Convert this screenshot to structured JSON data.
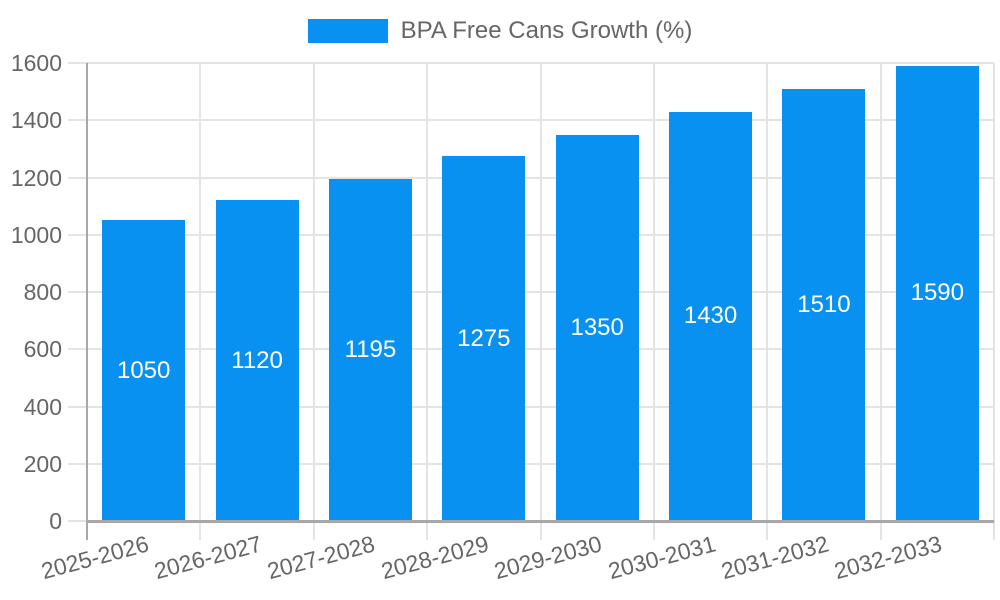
{
  "chart_data": {
    "type": "bar",
    "legend_label": "BPA Free Cans Growth (%)",
    "legend_position": "top",
    "categories": [
      "2025-2026",
      "2026-2027",
      "2027-2028",
      "2028-2029",
      "2029-2030",
      "2030-2031",
      "2031-2032",
      "2032-2033"
    ],
    "values": [
      1050,
      1120,
      1195,
      1275,
      1350,
      1430,
      1510,
      1590
    ],
    "yticks": [
      0,
      200,
      400,
      600,
      800,
      1000,
      1200,
      1400,
      1600
    ],
    "ylim": [
      0,
      1600
    ],
    "grid": true,
    "x_tick_rotation_deg": -15,
    "value_labels": "inside-center",
    "colors": {
      "bar": "#0991f2",
      "value_label": "#ffffff",
      "grid": "#e4e4e4",
      "axis": "#a8a8a8",
      "tick_text": "#666666",
      "legend_text": "#666666",
      "background": "#ffffff"
    }
  }
}
